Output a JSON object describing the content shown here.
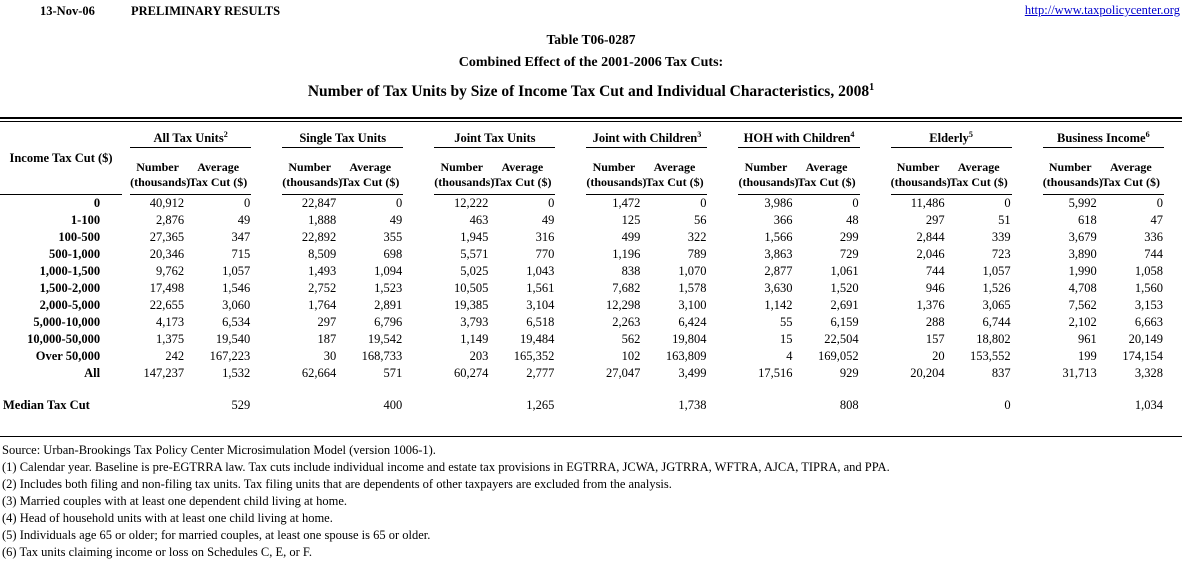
{
  "header": {
    "date": "13-Nov-06",
    "status": "PRELIMINARY RESULTS",
    "url": "http://www.taxpolicycenter.org"
  },
  "title": {
    "line1": "Table T06-0287",
    "line2": "Combined Effect of the 2001-2006 Tax Cuts:",
    "line3": "Number of Tax Units by Size of Income Tax Cut and Individual Characteristics, 2008",
    "line3_sup": "1"
  },
  "table": {
    "row_header": "Income Tax Cut ($)",
    "groups": [
      {
        "label": "All Tax Units",
        "sup": "2"
      },
      {
        "label": "Single Tax Units",
        "sup": ""
      },
      {
        "label": "Joint Tax Units",
        "sup": ""
      },
      {
        "label": "Joint with Children",
        "sup": "3"
      },
      {
        "label": "HOH with Children",
        "sup": "4"
      },
      {
        "label": "Elderly",
        "sup": "5"
      },
      {
        "label": "Business Income",
        "sup": "6"
      }
    ],
    "sub_headers": {
      "number_line1": "Number",
      "number_line2": "(thousands)",
      "average_line1": "Average",
      "average_line2": "Tax Cut ($)"
    },
    "rows": [
      {
        "label": "0",
        "values": [
          "40,912",
          "0",
          "22,847",
          "0",
          "12,222",
          "0",
          "1,472",
          "0",
          "3,986",
          "0",
          "11,486",
          "0",
          "5,992",
          "0"
        ]
      },
      {
        "label": "1-100",
        "values": [
          "2,876",
          "49",
          "1,888",
          "49",
          "463",
          "49",
          "125",
          "56",
          "366",
          "48",
          "297",
          "51",
          "618",
          "47"
        ]
      },
      {
        "label": "100-500",
        "values": [
          "27,365",
          "347",
          "22,892",
          "355",
          "1,945",
          "316",
          "499",
          "322",
          "1,566",
          "299",
          "2,844",
          "339",
          "3,679",
          "336"
        ]
      },
      {
        "label": "500-1,000",
        "values": [
          "20,346",
          "715",
          "8,509",
          "698",
          "5,571",
          "770",
          "1,196",
          "789",
          "3,863",
          "729",
          "2,046",
          "723",
          "3,890",
          "744"
        ]
      },
      {
        "label": "1,000-1,500",
        "values": [
          "9,762",
          "1,057",
          "1,493",
          "1,094",
          "5,025",
          "1,043",
          "838",
          "1,070",
          "2,877",
          "1,061",
          "744",
          "1,057",
          "1,990",
          "1,058"
        ]
      },
      {
        "label": "1,500-2,000",
        "values": [
          "17,498",
          "1,546",
          "2,752",
          "1,523",
          "10,505",
          "1,561",
          "7,682",
          "1,578",
          "3,630",
          "1,520",
          "946",
          "1,526",
          "4,708",
          "1,560"
        ]
      },
      {
        "label": "2,000-5,000",
        "values": [
          "22,655",
          "3,060",
          "1,764",
          "2,891",
          "19,385",
          "3,104",
          "12,298",
          "3,100",
          "1,142",
          "2,691",
          "1,376",
          "3,065",
          "7,562",
          "3,153"
        ]
      },
      {
        "label": "5,000-10,000",
        "values": [
          "4,173",
          "6,534",
          "297",
          "6,796",
          "3,793",
          "6,518",
          "2,263",
          "6,424",
          "55",
          "6,159",
          "288",
          "6,744",
          "2,102",
          "6,663"
        ]
      },
      {
        "label": "10,000-50,000",
        "values": [
          "1,375",
          "19,540",
          "187",
          "19,542",
          "1,149",
          "19,484",
          "562",
          "19,804",
          "15",
          "22,504",
          "157",
          "18,802",
          "961",
          "20,149"
        ]
      },
      {
        "label": "Over 50,000",
        "values": [
          "242",
          "167,223",
          "30",
          "168,733",
          "203",
          "165,352",
          "102",
          "163,809",
          "4",
          "169,052",
          "20",
          "153,552",
          "199",
          "174,154"
        ]
      },
      {
        "label": "All",
        "values": [
          "147,237",
          "1,532",
          "62,664",
          "571",
          "60,274",
          "2,777",
          "27,047",
          "3,499",
          "17,516",
          "929",
          "20,204",
          "837",
          "31,713",
          "3,328"
        ]
      }
    ],
    "median": {
      "label": "Median Tax Cut",
      "values": [
        "529",
        "400",
        "1,265",
        "1,738",
        "808",
        "0",
        "1,034"
      ]
    }
  },
  "footnotes": [
    "Source: Urban-Brookings Tax Policy Center Microsimulation Model (version 1006-1).",
    "(1) Calendar year. Baseline is pre-EGTRRA law. Tax cuts include individual income and estate tax provisions in EGTRRA, JCWA, JGTRRA, WFTRA, AJCA, TIPRA, and PPA.",
    "(2) Includes both filing and non-filing tax units.  Tax filing units that are dependents of other taxpayers are excluded from the analysis.",
    "(3) Married couples with at least one dependent child living at home.",
    "(4) Head of household units with at least one child living at home.",
    "(5) Individuals age 65 or older; for married couples, at least one spouse is 65 or older.",
    "(6) Tax units claiming income or loss on Schedules C, E, or F."
  ]
}
